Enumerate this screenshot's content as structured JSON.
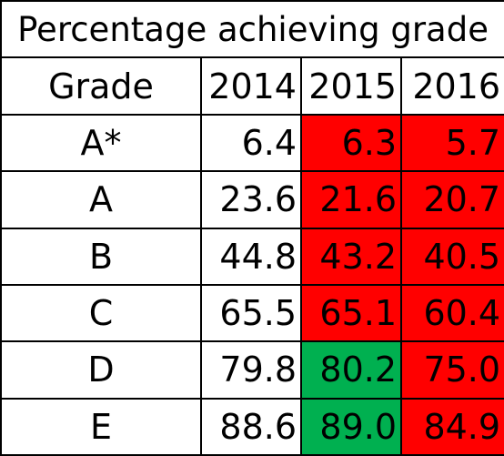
{
  "title": "Percentage achieving grade",
  "headers": [
    "Grade",
    "2014",
    "2015",
    "2016"
  ],
  "colors": {
    "decrease": "#ff0000",
    "increase": "#00b050"
  },
  "rows": [
    {
      "grade": "A*",
      "y2014": "6.4",
      "y2015": "6.3",
      "y2016": "5.7",
      "fill2015": "decrease",
      "fill2016": "decrease"
    },
    {
      "grade": "A",
      "y2014": "23.6",
      "y2015": "21.6",
      "y2016": "20.7",
      "fill2015": "decrease",
      "fill2016": "decrease"
    },
    {
      "grade": "B",
      "y2014": "44.8",
      "y2015": "43.2",
      "y2016": "40.5",
      "fill2015": "decrease",
      "fill2016": "decrease"
    },
    {
      "grade": "C",
      "y2014": "65.5",
      "y2015": "65.1",
      "y2016": "60.4",
      "fill2015": "decrease",
      "fill2016": "decrease"
    },
    {
      "grade": "D",
      "y2014": "79.8",
      "y2015": "80.2",
      "y2016": "75.0",
      "fill2015": "increase",
      "fill2016": "decrease"
    },
    {
      "grade": "E",
      "y2014": "88.6",
      "y2015": "89.0",
      "y2016": "84.9",
      "fill2015": "increase",
      "fill2016": "decrease"
    }
  ]
}
